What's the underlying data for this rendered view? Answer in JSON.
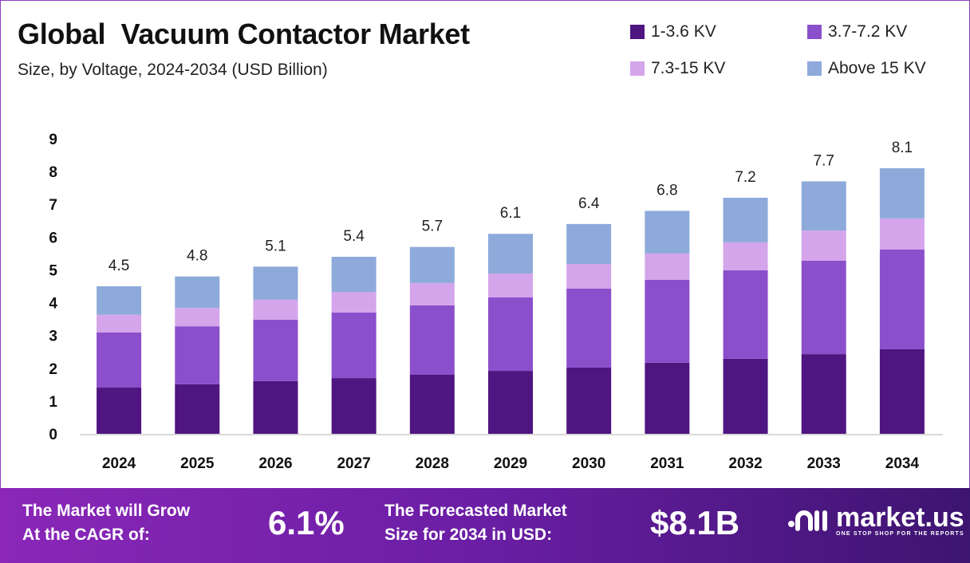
{
  "chart_data": {
    "type": "bar",
    "stacked": true,
    "title": "Global  Vacuum Contactor Market",
    "subtitle": "Size, by Voltage, 2024-2034 (USD Billion)",
    "categories": [
      "2024",
      "2025",
      "2026",
      "2027",
      "2028",
      "2029",
      "2030",
      "2031",
      "2032",
      "2033",
      "2034"
    ],
    "series": [
      {
        "name": "1-3.6 KV",
        "color": "#4f1581",
        "values": [
          1.41,
          1.51,
          1.61,
          1.7,
          1.8,
          1.92,
          2.02,
          2.17,
          2.29,
          2.43,
          2.58
        ]
      },
      {
        "name": "3.7-7.2 KV",
        "color": "#8b4fcc",
        "values": [
          1.68,
          1.77,
          1.87,
          2.0,
          2.12,
          2.24,
          2.41,
          2.53,
          2.7,
          2.85,
          3.04
        ]
      },
      {
        "name": "7.3-15 KV",
        "color": "#d4a5ea",
        "values": [
          0.54,
          0.56,
          0.61,
          0.63,
          0.68,
          0.73,
          0.75,
          0.8,
          0.85,
          0.92,
          0.95
        ]
      },
      {
        "name": "Above 15 KV",
        "color": "#8eaadb",
        "values": [
          0.87,
          0.96,
          1.01,
          1.07,
          1.1,
          1.21,
          1.22,
          1.3,
          1.36,
          1.5,
          1.53
        ]
      }
    ],
    "totals": [
      "4.5",
      "4.8",
      "5.1",
      "5.4",
      "5.7",
      "6.1",
      "6.4",
      "6.8",
      "7.2",
      "7.7",
      "8.1"
    ],
    "yticks": [
      "0",
      "1",
      "2",
      "3",
      "4",
      "5",
      "6",
      "7",
      "8",
      "9"
    ],
    "ylim": [
      0,
      9
    ],
    "xlabel": "",
    "ylabel": "",
    "grid": false,
    "legend_position": "top-right"
  },
  "footer": {
    "cagr_label_1": "The Market will Grow",
    "cagr_label_2": "At the CAGR of:",
    "cagr_value": "6.1%",
    "forecast_label_1": "The Forecasted Market",
    "forecast_label_2": "Size for 2034 in USD:",
    "forecast_value": "$8.1B",
    "logo_text": "market.us",
    "logo_tagline": "ONE STOP SHOP FOR THE REPORTS"
  }
}
